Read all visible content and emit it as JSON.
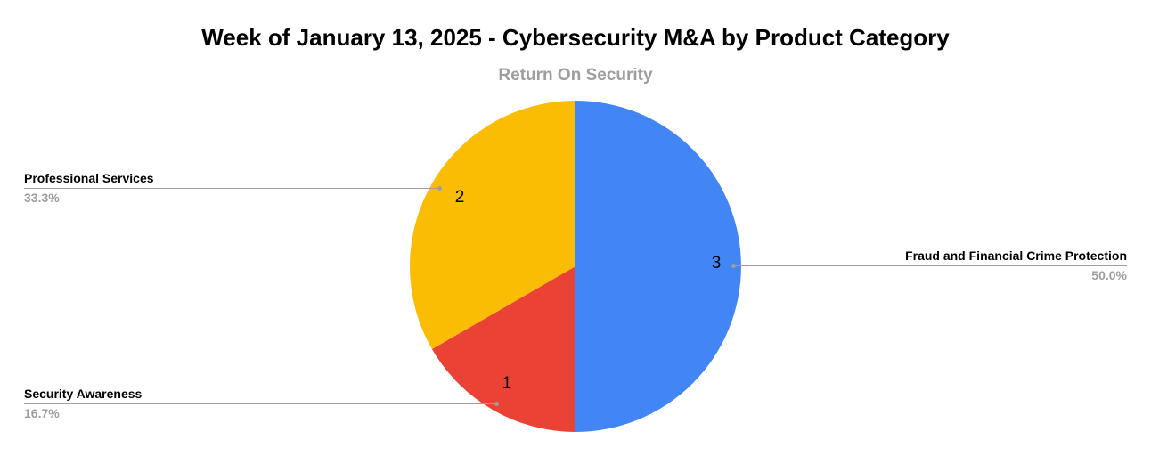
{
  "chart_data": {
    "type": "pie",
    "title": "Week of January 13, 2025 - Cybersecurity M&A by Product Category",
    "subtitle": "Return On Security",
    "total": 6,
    "start_angle_deg": 0,
    "direction": "clockwise",
    "legend_position": "labeled-callouts",
    "slices": [
      {
        "label": "Fraud and Financial Crime Protection",
        "value": 3,
        "percent_label": "50.0%",
        "percent": 50.0,
        "color": "#4285F4"
      },
      {
        "label": "Security Awareness",
        "value": 1,
        "percent_label": "16.7%",
        "percent": 16.7,
        "color": "#EA4335"
      },
      {
        "label": "Professional Services",
        "value": 2,
        "percent_label": "33.3%",
        "percent": 33.3,
        "color": "#FBBC04"
      }
    ],
    "colors": {
      "title_text": "#000000",
      "subtitle_text": "#9e9e9e",
      "label_text": "#000000",
      "percent_text": "#9e9e9e",
      "leader_line": "#9e9e9e",
      "background": "#ffffff"
    }
  }
}
